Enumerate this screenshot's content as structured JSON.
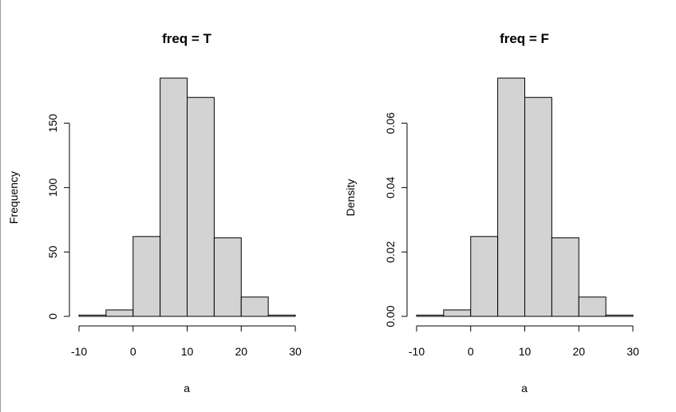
{
  "chart_data": [
    {
      "type": "bar",
      "title": "freq = T",
      "xlabel": "a",
      "ylabel": "Frequency",
      "bins": [
        [
          -10,
          -5
        ],
        [
          -5,
          0
        ],
        [
          0,
          5
        ],
        [
          5,
          10
        ],
        [
          10,
          15
        ],
        [
          15,
          20
        ],
        [
          20,
          25
        ],
        [
          25,
          30
        ]
      ],
      "values": [
        1,
        5,
        62,
        185,
        170,
        61,
        15,
        1
      ],
      "xlim": [
        -10,
        30
      ],
      "ylim": [
        0,
        185
      ],
      "xticks": [
        -10,
        0,
        10,
        20,
        30
      ],
      "yticks": [
        0,
        50,
        100,
        150
      ],
      "xtick_labels": [
        "-10",
        "0",
        "10",
        "20",
        "30"
      ],
      "ytick_labels": [
        "0",
        "50",
        "100",
        "150"
      ]
    },
    {
      "type": "bar",
      "title": "freq = F",
      "xlabel": "a",
      "ylabel": "Density",
      "bins": [
        [
          -10,
          -5
        ],
        [
          -5,
          0
        ],
        [
          0,
          5
        ],
        [
          5,
          10
        ],
        [
          10,
          15
        ],
        [
          15,
          20
        ],
        [
          20,
          25
        ],
        [
          25,
          30
        ]
      ],
      "values": [
        0.0004,
        0.002,
        0.0248,
        0.074,
        0.068,
        0.0244,
        0.006,
        0.0004
      ],
      "xlim": [
        -10,
        30
      ],
      "ylim": [
        0,
        0.074
      ],
      "xticks": [
        -10,
        0,
        10,
        20,
        30
      ],
      "yticks": [
        0,
        0.02,
        0.04,
        0.06
      ],
      "xtick_labels": [
        "-10",
        "0",
        "10",
        "20",
        "30"
      ],
      "ytick_labels": [
        "0.00",
        "0.02",
        "0.04",
        "0.06"
      ]
    }
  ]
}
